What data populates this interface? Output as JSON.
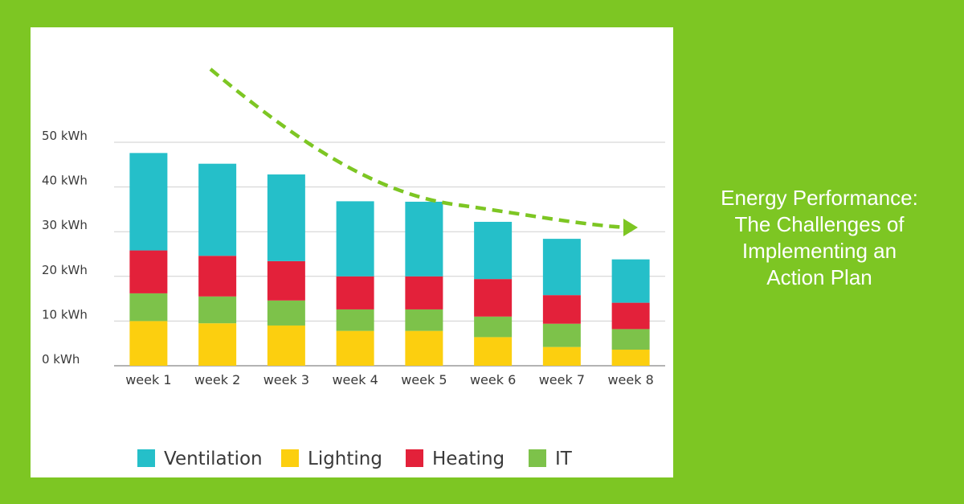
{
  "title_lines": [
    "Energy Performance:",
    "The Challenges of",
    "Implementing an",
    "Action Plan"
  ],
  "colors": {
    "background": "#7dc623",
    "arrow": "#7dc623"
  },
  "chart_data": {
    "type": "bar",
    "stacked": true,
    "categories": [
      "week 1",
      "week 2",
      "week 3",
      "week 4",
      "week 5",
      "week 6",
      "week 7",
      "week 8"
    ],
    "y_ticks": [
      "0 kWh",
      "10 kWh",
      "20 kWh",
      "30 kWh",
      "40 kWh",
      "50 kWh"
    ],
    "ylim": [
      0,
      50
    ],
    "grid": true,
    "legend_position": "bottom",
    "trend_arrow": "dashed curved arrow descending across the bars",
    "series": [
      {
        "name": "Lighting",
        "color": "#fccf0f",
        "values": [
          10,
          9.5,
          9,
          7.8,
          7.8,
          6.4,
          4.2,
          3.6
        ]
      },
      {
        "name": "IT",
        "color": "#7dc24a",
        "values": [
          6.2,
          6,
          5.6,
          4.8,
          4.8,
          4.6,
          5.2,
          4.6
        ]
      },
      {
        "name": "Heating",
        "color": "#e3213a",
        "values": [
          9.6,
          9.1,
          8.8,
          7.4,
          7.4,
          8.4,
          6.4,
          5.9
        ]
      },
      {
        "name": "Ventilation",
        "color": "#25bfc9",
        "values": [
          21.8,
          20.6,
          19.4,
          16.8,
          16.7,
          12.8,
          12.6,
          9.7
        ]
      }
    ],
    "legend": [
      {
        "label": "Ventilation",
        "color": "#25bfc9"
      },
      {
        "label": "Lighting",
        "color": "#fccf0f"
      },
      {
        "label": "Heating",
        "color": "#e3213a"
      },
      {
        "label": "IT",
        "color": "#7dc24a"
      }
    ]
  }
}
